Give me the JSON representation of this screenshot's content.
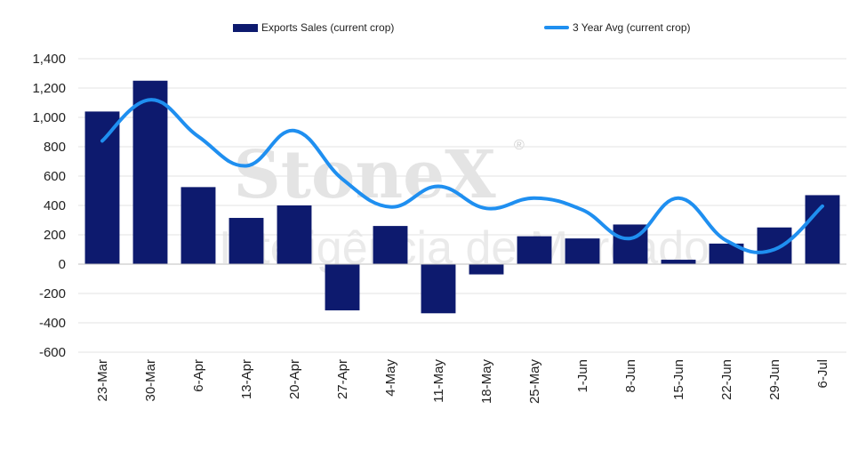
{
  "watermark": {
    "brand": "StoneX",
    "registered": "®",
    "tagline": "Inteligência de Mercado"
  },
  "colors": {
    "bar": "#0d1a6e",
    "line": "#1f8ff0",
    "grid": "#e3e3e3",
    "axis": "#bfbfbf"
  },
  "chart_data": {
    "type": "bar",
    "categories": [
      "23-Mar",
      "30-Mar",
      "6-Apr",
      "13-Apr",
      "20-Apr",
      "27-Apr",
      "4-May",
      "11-May",
      "18-May",
      "25-May",
      "1-Jun",
      "8-Jun",
      "15-Jun",
      "22-Jun",
      "29-Jun",
      "6-Jul"
    ],
    "series": [
      {
        "name": "Exports Sales (current crop)",
        "kind": "bar",
        "values": [
          1040,
          1250,
          525,
          315,
          400,
          -315,
          260,
          -335,
          -70,
          190,
          175,
          270,
          30,
          140,
          250,
          470
        ]
      },
      {
        "name": "3 Year Avg (current crop)",
        "kind": "line",
        "values": [
          840,
          1120,
          870,
          670,
          910,
          580,
          390,
          530,
          380,
          450,
          370,
          175,
          450,
          160,
          100,
          395
        ]
      }
    ],
    "yticks": [
      "1,400",
      "1,200",
      "1,000",
      "800",
      "600",
      "400",
      "200",
      "0",
      "-200",
      "-400",
      "-600"
    ],
    "ylim": [
      -600,
      1400
    ],
    "grid": true,
    "legend": "top-center"
  }
}
